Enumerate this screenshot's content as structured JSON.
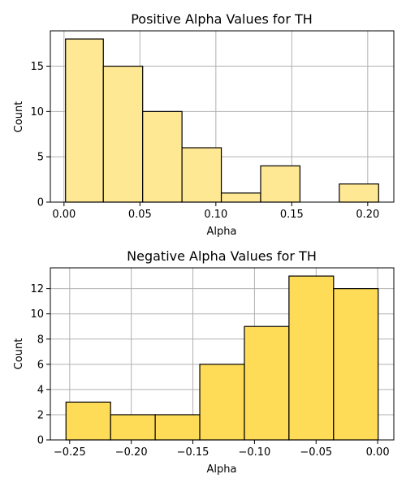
{
  "chart_data": [
    {
      "type": "bar",
      "title": "Positive Alpha Values for TH",
      "xlabel": "Alpha",
      "ylabel": "Count",
      "bin_edges": [
        0.001,
        0.0259,
        0.0518,
        0.0777,
        0.1036,
        0.1295,
        0.1554,
        0.1813,
        0.2072
      ],
      "values": [
        18,
        15,
        10,
        6,
        1,
        4,
        0,
        2
      ],
      "xlim": [
        -0.009,
        0.2172
      ],
      "ylim": [
        0,
        18.9
      ],
      "xticks": [
        0.0,
        0.05,
        0.1,
        0.15,
        0.2
      ],
      "xtick_labels": [
        "0.00",
        "0.05",
        "0.10",
        "0.15",
        "0.20"
      ],
      "yticks": [
        0,
        5,
        10,
        15
      ],
      "ytick_labels": [
        "0",
        "5",
        "10",
        "15"
      ],
      "color": "#ffe894",
      "grid": true
    },
    {
      "type": "bar",
      "title": "Negative Alpha Values for TH",
      "xlabel": "Alpha",
      "ylabel": "Count",
      "bin_edges": [
        -0.253,
        -0.2168,
        -0.1806,
        -0.1444,
        -0.1082,
        -0.072,
        -0.0358,
        0.0004
      ],
      "values": [
        3,
        2,
        2,
        6,
        9,
        13,
        12
      ],
      "xlim": [
        -0.2657,
        0.0131
      ],
      "ylim": [
        0,
        13.65
      ],
      "xticks": [
        -0.25,
        -0.2,
        -0.15,
        -0.1,
        -0.05,
        0.0
      ],
      "xtick_labels": [
        "−0.25",
        "−0.20",
        "−0.15",
        "−0.10",
        "−0.05",
        "0.00"
      ],
      "yticks": [
        0,
        2,
        4,
        6,
        8,
        10,
        12
      ],
      "ytick_labels": [
        "0",
        "2",
        "4",
        "6",
        "8",
        "10",
        "12"
      ],
      "color": "#ffdc57",
      "grid": true
    }
  ]
}
